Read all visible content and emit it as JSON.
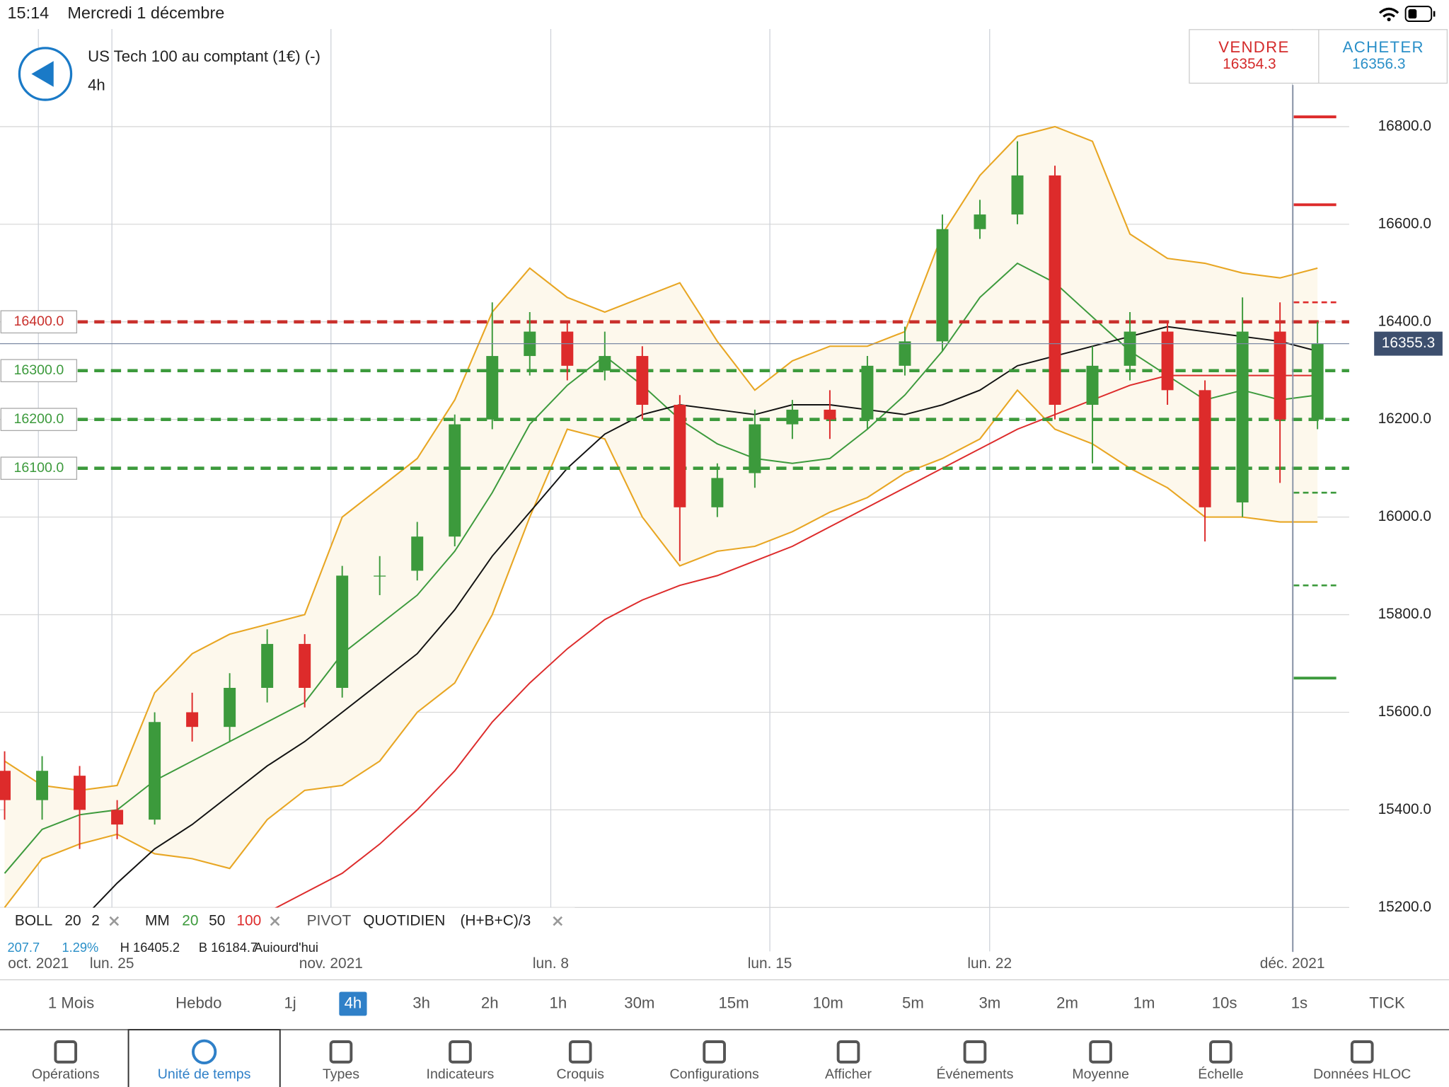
{
  "status_bar": {
    "time": "15:14",
    "date": "Mercredi 1 décembre"
  },
  "header": {
    "instrument": "US Tech 100 au comptant (1€) (-)",
    "timeframe": "4h"
  },
  "trade": {
    "sell_label": "VENDRE",
    "sell_price": 16354.3,
    "buy_label": "ACHETER",
    "buy_price": 16356.3
  },
  "chart_data": {
    "type": "candlestick",
    "xlim": [
      0,
      35.5
    ],
    "ylim": [
      15110,
      17000
    ],
    "xticks": [
      {
        "value": 0.9,
        "label": "oct. 2021"
      },
      {
        "value": 2.86,
        "label": "lun. 25"
      },
      {
        "value": 8.7,
        "label": "nov. 2021"
      },
      {
        "value": 14.56,
        "label": "lun. 8"
      },
      {
        "value": 20.4,
        "label": "lun. 15"
      },
      {
        "value": 26.26,
        "label": "lun. 22"
      },
      {
        "value": 34.33,
        "label": "déc. 2021"
      }
    ],
    "yticks": [
      {
        "value": 15200,
        "label": "15200.0"
      },
      {
        "value": 15400,
        "label": "15400.0"
      },
      {
        "value": 15600,
        "label": "15600.0"
      },
      {
        "value": 15800,
        "label": "15800.0"
      },
      {
        "value": 16000,
        "label": "16000.0"
      },
      {
        "value": 16200,
        "label": "16200.0"
      },
      {
        "value": 16400,
        "label": "16400.0"
      },
      {
        "value": 16600,
        "label": "16600.0"
      },
      {
        "value": 16800,
        "label": "16800.0"
      }
    ],
    "grid": true,
    "up_color": "#3c9a3c",
    "down_color": "#dd2b2b",
    "open": [
      15480,
      15420,
      15470,
      15400,
      15380,
      15600,
      15570,
      15650,
      15740,
      15650,
      15880,
      15890,
      15960,
      16200,
      16330,
      16380,
      16300,
      16330,
      16230,
      16020,
      16090,
      16190,
      16220,
      16200,
      16310,
      16360,
      16590,
      16620,
      16700,
      16230,
      16310,
      16380,
      16260,
      16030,
      16380,
      16200
    ],
    "high": [
      15520,
      15510,
      15490,
      15420,
      15600,
      15640,
      15680,
      15770,
      15760,
      15900,
      15920,
      15990,
      16210,
      16440,
      16420,
      16400,
      16380,
      16350,
      16250,
      16110,
      16220,
      16240,
      16260,
      16330,
      16390,
      16620,
      16650,
      16770,
      16720,
      16350,
      16420,
      16400,
      16280,
      16450,
      16440,
      16400
    ],
    "low": [
      15380,
      15380,
      15320,
      15340,
      15370,
      15540,
      15540,
      15620,
      15610,
      15630,
      15840,
      15870,
      15940,
      16180,
      16290,
      16280,
      16280,
      16200,
      15910,
      16000,
      16060,
      16160,
      16160,
      16180,
      16290,
      16340,
      16570,
      16600,
      16200,
      16110,
      16280,
      16230,
      15950,
      16000,
      16070,
      16180
    ],
    "close": [
      15420,
      15480,
      15400,
      15370,
      15580,
      15570,
      15650,
      15740,
      15650,
      15880,
      15880,
      15960,
      16190,
      16330,
      16380,
      16310,
      16330,
      16230,
      16020,
      16080,
      16190,
      16220,
      16200,
      16310,
      16360,
      16590,
      16620,
      16700,
      16230,
      16310,
      16380,
      16260,
      16020,
      16380,
      16200,
      16355
    ],
    "band": {
      "color": "#e8a623",
      "fill": "#fdf8ec",
      "upper": [
        15500,
        15450,
        15440,
        15450,
        15640,
        15720,
        15760,
        15780,
        15800,
        16000,
        16060,
        16120,
        16240,
        16420,
        16510,
        16450,
        16420,
        16450,
        16480,
        16360,
        16260,
        16320,
        16350,
        16350,
        16380,
        16580,
        16700,
        16780,
        16800,
        16770,
        16580,
        16530,
        16520,
        16500,
        16490,
        16510
      ],
      "lower": [
        15200,
        15300,
        15330,
        15350,
        15310,
        15300,
        15280,
        15380,
        15440,
        15450,
        15500,
        15600,
        15660,
        15800,
        16000,
        16180,
        16160,
        16000,
        15900,
        15930,
        15940,
        15970,
        16010,
        16040,
        16090,
        16120,
        16160,
        16260,
        16180,
        16150,
        16100,
        16060,
        16000,
        16000,
        15990,
        15990
      ]
    },
    "series": [
      {
        "name": 20,
        "color": "#3c9a3c",
        "values": [
          15270,
          15360,
          15390,
          15400,
          15460,
          15500,
          15540,
          15580,
          15620,
          15720,
          15780,
          15840,
          15930,
          16050,
          16190,
          16270,
          16330,
          16270,
          16200,
          16150,
          16120,
          16110,
          16120,
          16180,
          16250,
          16340,
          16450,
          16520,
          16480,
          16410,
          16340,
          16290,
          16240,
          16260,
          16240,
          16250
        ]
      },
      {
        "name": 50,
        "color": "#111111",
        "values": [
          null,
          null,
          15170,
          15250,
          15320,
          15370,
          15430,
          15490,
          15540,
          15600,
          15660,
          15720,
          15810,
          15920,
          16010,
          16100,
          16170,
          16210,
          16230,
          16220,
          16210,
          16230,
          16230,
          16220,
          16210,
          16230,
          16260,
          16310,
          16330,
          16350,
          16370,
          16390,
          16380,
          16370,
          16360,
          16340
        ]
      },
      {
        "name": 100,
        "color": "#dd2b2b",
        "values": [
          null,
          null,
          null,
          null,
          null,
          null,
          null,
          15190,
          15230,
          15270,
          15330,
          15400,
          15480,
          15580,
          15660,
          15730,
          15790,
          15830,
          15860,
          15880,
          15910,
          15940,
          15980,
          16020,
          16060,
          16100,
          16140,
          16180,
          16210,
          16240,
          16270,
          16290,
          16290,
          16290,
          16290,
          16290
        ]
      }
    ],
    "levels": [
      {
        "value": 16400,
        "label": "16400.0",
        "color": "#c9302c"
      },
      {
        "value": 16300,
        "label": "16300.0",
        "color": "#3c9a3c"
      },
      {
        "value": 16200,
        "label": "16200.0",
        "color": "#3c9a3c"
      },
      {
        "value": 16100,
        "label": "16100.0",
        "color": "#3c9a3c"
      }
    ],
    "pivots": [
      {
        "value": 16820,
        "color": "#dd2b2b",
        "dashed": false
      },
      {
        "value": 16640,
        "color": "#dd2b2b",
        "dashed": false
      },
      {
        "value": 16440,
        "color": "#dd2b2b",
        "dashed": true
      },
      {
        "value": 16050,
        "color": "#3c9a3c",
        "dashed": true
      },
      {
        "value": 15860,
        "color": "#3c9a3c",
        "dashed": true
      },
      {
        "value": 15670,
        "color": "#3c9a3c",
        "dashed": false
      }
    ],
    "last_price": 16355.3
  },
  "indicators": {
    "boll": "BOLL",
    "boll_period": 20,
    "boll_dev": 2,
    "mm": "MM",
    "pivot": "PIVOT",
    "pivot_period": "QUOTIDIEN",
    "pivot_formula": "(H+B+C)/3"
  },
  "info_row": [
    "207.7",
    "1.29%",
    "H 16405.2",
    "B 16184.7",
    "Aujourd'hui"
  ],
  "timeframes": [
    "1 Mois",
    "Hebdo",
    "1j",
    "4h",
    "3h",
    "2h",
    "1h",
    "30m",
    "15m",
    "10m",
    "5m",
    "3m",
    "2m",
    "1m",
    "10s",
    "1s",
    "TICK"
  ],
  "selected_timeframe": 3,
  "tabs": [
    "Opérations",
    "Unité de temps",
    "Types",
    "Indicateurs",
    "Croquis",
    "Configurations",
    "Afficher",
    "Événements",
    "Moyenne",
    "Échelle",
    "Données HLOC"
  ],
  "selected_tab": 1
}
